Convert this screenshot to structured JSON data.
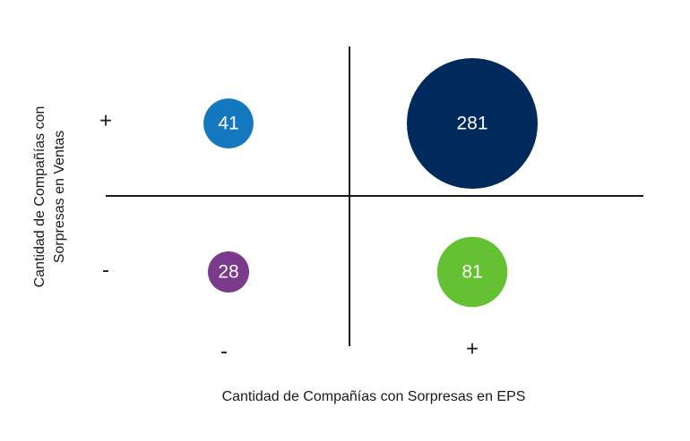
{
  "chart_data": {
    "type": "bubble-quadrant",
    "xlabel": "Cantidad de Compañías con Sorpresas en EPS",
    "ylabel_lines": [
      "Cantidad de Compañías con",
      "Sorpresas en Ventas"
    ],
    "x_categories": [
      "-",
      "+"
    ],
    "y_categories": [
      "-",
      "+"
    ],
    "points": [
      {
        "x": "-",
        "y": "+",
        "value": 41,
        "color": "#1478bf"
      },
      {
        "x": "+",
        "y": "+",
        "value": 281,
        "color": "#002a5c"
      },
      {
        "x": "-",
        "y": "-",
        "value": 28,
        "color": "#7b3a8c"
      },
      {
        "x": "+",
        "y": "-",
        "value": 81,
        "color": "#63c132"
      }
    ]
  }
}
